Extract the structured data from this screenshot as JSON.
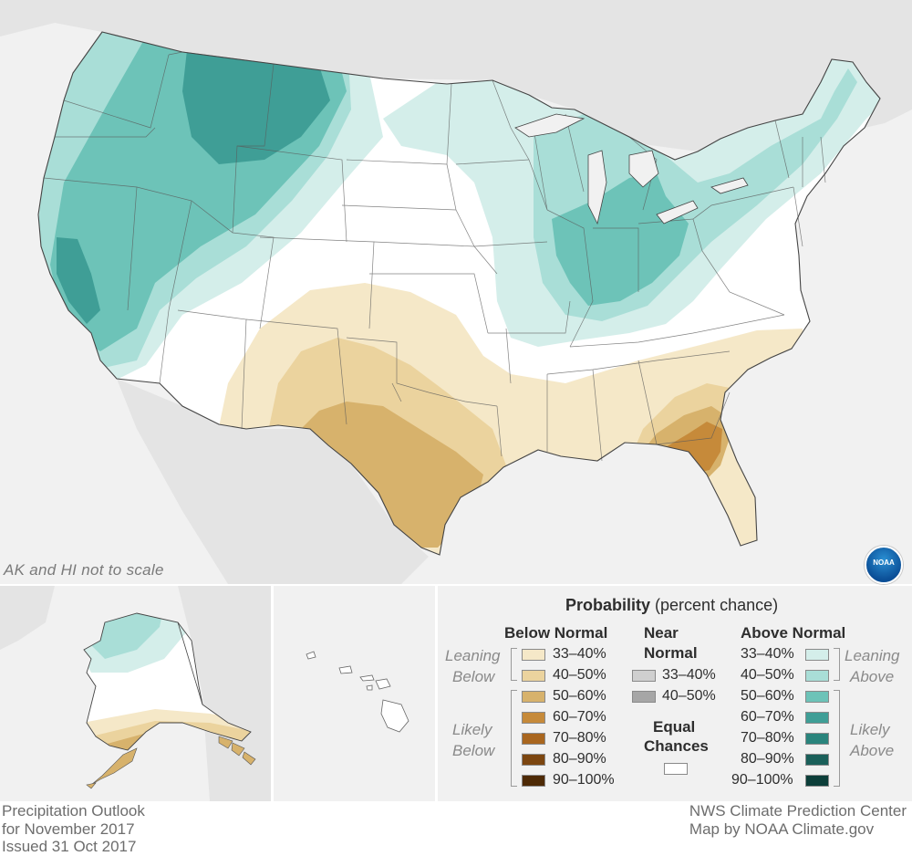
{
  "map": {
    "scale_note": "AK and HI not to scale",
    "logo_text": "NOAA",
    "colors": {
      "land_outside": "#e4e4e4",
      "water": "#f1f1f1",
      "equal_chances": "#ffffff",
      "below_33_40": "#f5e8c8",
      "below_40_50": "#ebd39e",
      "below_50_60": "#d7b26c",
      "below_60_70": "#c68a3a",
      "below_70_80": "#a9661f",
      "below_80_90": "#7c4610",
      "below_90_100": "#4e2a06",
      "above_33_40": "#d4eeea",
      "above_40_50": "#a9ded7",
      "above_50_60": "#6dc3b8",
      "above_60_70": "#3f9e96",
      "above_70_80": "#2a847c",
      "above_80_90": "#1a5f59",
      "above_90_100": "#0c3e39"
    }
  },
  "legend": {
    "title_bold": "Probability",
    "title_rest": "(percent chance)",
    "below_normal": "Below Normal",
    "near_normal_line1": "Near",
    "near_normal_line2": "Normal",
    "above_normal": "Above Normal",
    "leaning": "Leaning",
    "below": "Below",
    "above": "Above",
    "likely": "Likely",
    "equal_line1": "Equal",
    "equal_line2": "Chances",
    "below_ranges": [
      "33–40%",
      "40–50%",
      "50–60%",
      "60–70%",
      "70–80%",
      "80–90%",
      "90–100%"
    ],
    "near_ranges": [
      "33–40%",
      "40–50%"
    ],
    "above_ranges": [
      "33–40%",
      "40–50%",
      "50–60%",
      "60–70%",
      "70–80%",
      "80–90%",
      "90–100%"
    ]
  },
  "footer": {
    "left": [
      "Precipitation Outlook",
      "for November 2017",
      "Issued 31 Oct 2017"
    ],
    "right": [
      "NWS Climate Prediction Center",
      "Map by NOAA Climate.gov"
    ]
  }
}
